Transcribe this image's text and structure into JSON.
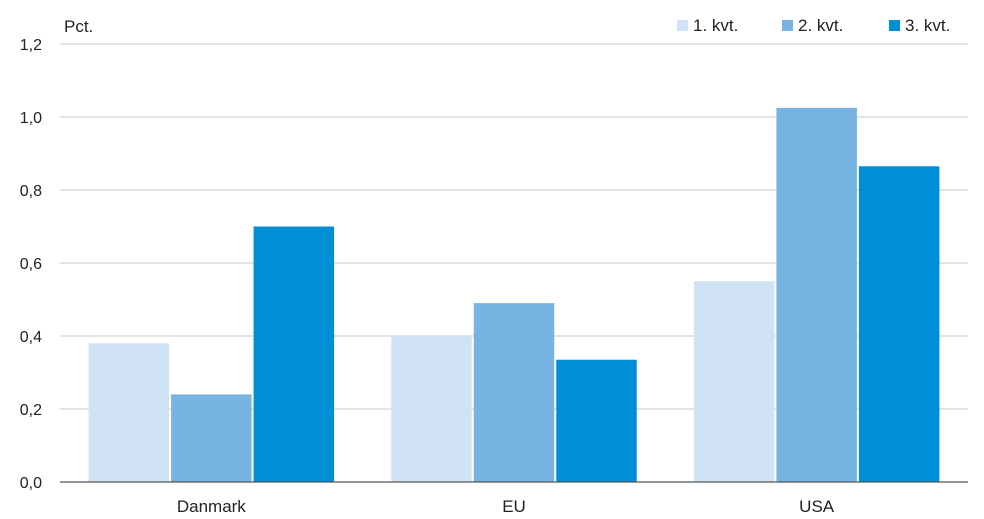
{
  "chart_data": {
    "type": "bar",
    "unit_label": "Pct.",
    "categories": [
      "Danmark",
      "EU",
      "USA"
    ],
    "series": [
      {
        "name": "1. kvt.",
        "color": "#cfe2f6",
        "values": [
          0.38,
          0.4,
          0.55
        ]
      },
      {
        "name": "2. kvt.",
        "color": "#78b4e2",
        "values": [
          0.24,
          0.49,
          1.025
        ]
      },
      {
        "name": "3. kvt.",
        "color": "#008fd6",
        "values": [
          0.7,
          0.335,
          0.865
        ]
      }
    ],
    "ylim": [
      0,
      1.2
    ],
    "yticks": [
      0,
      0.2,
      0.4,
      0.6,
      0.8,
      1.0,
      1.2
    ],
    "ytick_labels": [
      "0,0",
      "0,2",
      "0,4",
      "0,6",
      "0,8",
      "1,0",
      "1,2"
    ],
    "grid": true,
    "legend_position": "top-right"
  }
}
